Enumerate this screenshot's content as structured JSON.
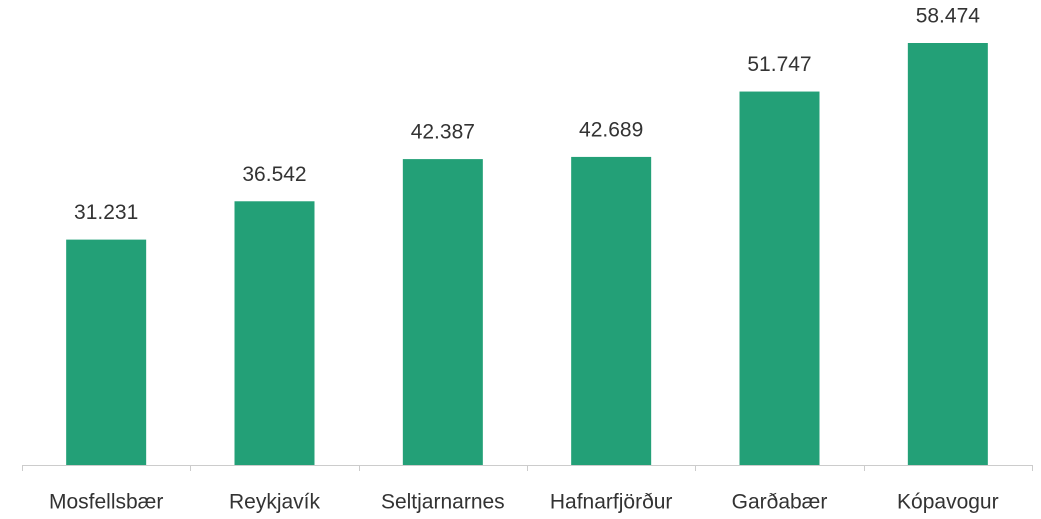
{
  "chart_data": {
    "type": "bar",
    "categories": [
      "Mosfellsbær",
      "Reykjavík",
      "Seltjarnarnes",
      "Hafnarfjörður",
      "Garðabær",
      "Kópavogur"
    ],
    "values": [
      31231,
      36542,
      42387,
      42689,
      51747,
      58474
    ],
    "value_labels": [
      "31.231",
      "36.542",
      "42.387",
      "42.689",
      "51.747",
      "58.474"
    ],
    "color": "#23a077"
  }
}
